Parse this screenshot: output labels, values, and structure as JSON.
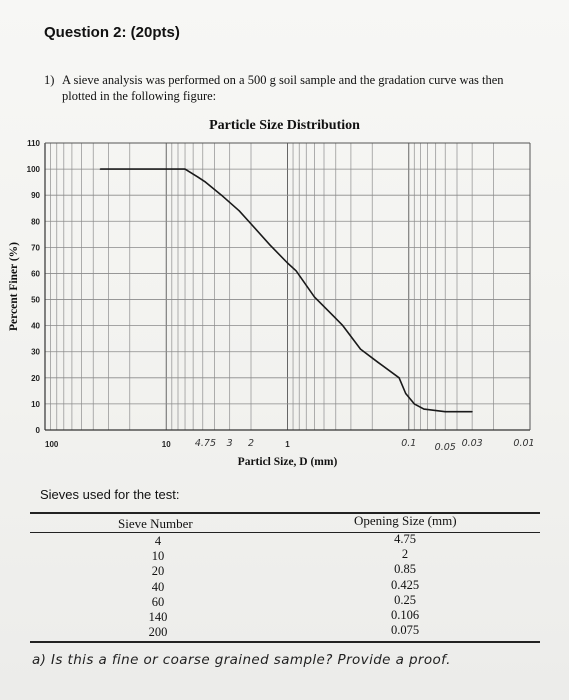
{
  "header": {
    "title": "Question 2: (20pts)"
  },
  "problem": {
    "number": "1)",
    "text": "A sieve analysis was performed on a 500 g soil sample and the gradation curve was then plotted in the following figure:"
  },
  "chart_data": {
    "type": "line",
    "title": "Particle Size Distribution",
    "xlabel": "Particl Size, D (mm)",
    "ylabel": "Percent Finer (%)",
    "x_scale": "log",
    "x_reversed": true,
    "xlim": [
      100,
      0.01
    ],
    "ylim": [
      0,
      110
    ],
    "y_ticks": [
      0,
      10,
      20,
      30,
      40,
      50,
      60,
      70,
      80,
      90,
      100,
      110
    ],
    "x_tick_labels": [
      {
        "value": 100,
        "label": "100"
      },
      {
        "value": 10,
        "label": "10"
      },
      {
        "value": 1,
        "label": "1"
      }
    ],
    "grid": true,
    "series": [
      {
        "x": [
          35,
          7,
          5.5,
          4.75,
          3.5,
          2.5,
          2.0,
          1.4,
          1.0,
          0.85,
          0.6,
          0.425,
          0.35,
          0.25,
          0.18,
          0.12,
          0.106,
          0.09,
          0.075,
          0.05,
          0.03
        ],
        "y": [
          100,
          100,
          97,
          95,
          90,
          84,
          79,
          71,
          64,
          61,
          51,
          44,
          40,
          31,
          26,
          20,
          14,
          10,
          8,
          7,
          7
        ]
      }
    ],
    "handwritten_annotations": [
      "4.75",
      "3",
      "2",
      "0.1",
      "0.05",
      "0.03",
      "0.01"
    ]
  },
  "sieves": {
    "caption": "Sieves used for the test:",
    "headers": [
      "Sieve Number",
      "Opening Size (mm)"
    ],
    "rows": [
      {
        "sieve": "4",
        "opening": "4.75"
      },
      {
        "sieve": "10",
        "opening": "2"
      },
      {
        "sieve": "20",
        "opening": "0.85"
      },
      {
        "sieve": "40",
        "opening": "0.425"
      },
      {
        "sieve": "60",
        "opening": "0.25"
      },
      {
        "sieve": "140",
        "opening": "0.106"
      },
      {
        "sieve": "200",
        "opening": "0.075"
      }
    ]
  },
  "handwritten_question": "a) Is this a fine or coarse grained sample? Provide a proof."
}
